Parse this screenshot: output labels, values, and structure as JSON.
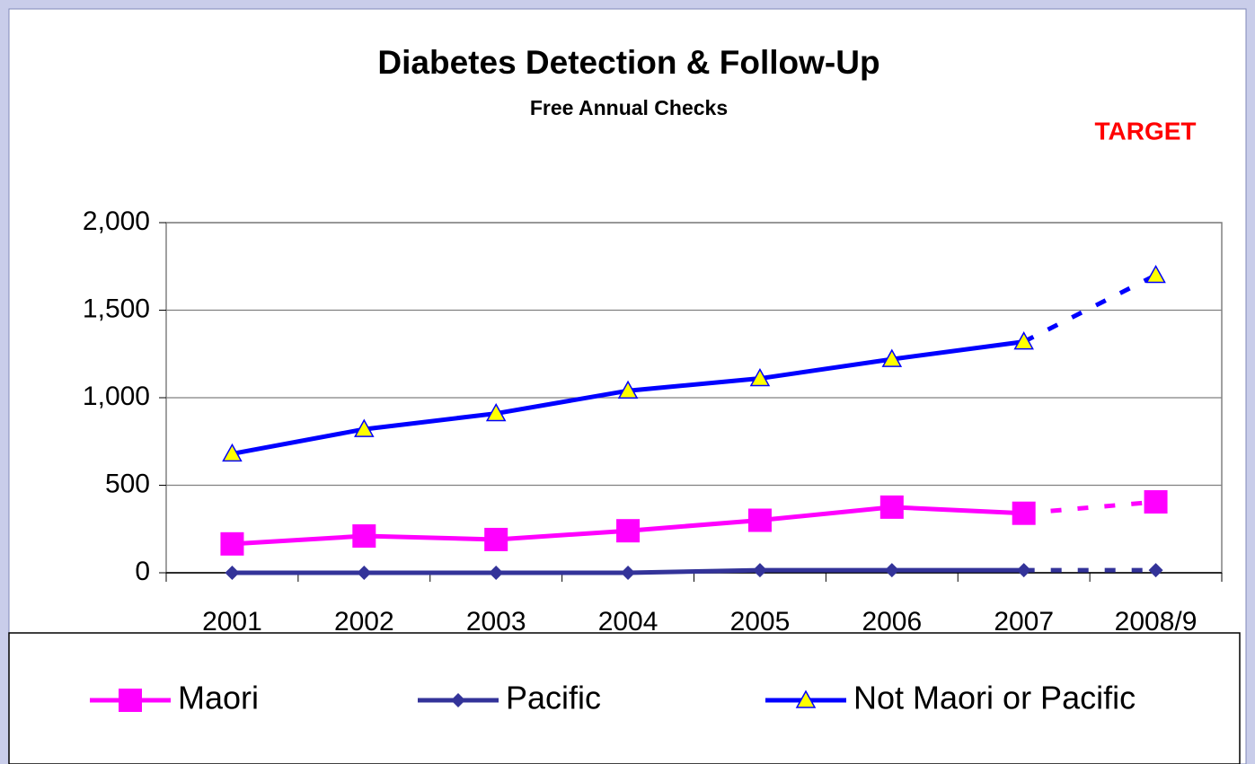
{
  "chart_data": {
    "type": "line",
    "title": "Diabetes Detection & Follow-Up",
    "subtitle": "Free Annual Checks",
    "annotation": "TARGET",
    "categories": [
      "2001",
      "2002",
      "2003",
      "2004",
      "2005",
      "2006",
      "2007",
      "2008/9"
    ],
    "series": [
      {
        "name": "Maori",
        "color": "#ff00ff",
        "marker": "square",
        "values": [
          165,
          210,
          190,
          240,
          300,
          375,
          340,
          405
        ]
      },
      {
        "name": "Pacific",
        "color": "#333399",
        "marker": "diamond",
        "values": [
          0,
          0,
          0,
          0,
          15,
          15,
          15,
          15
        ]
      },
      {
        "name": "Not Maori or Pacific",
        "color": "#0000ff",
        "marker": "triangle",
        "values": [
          680,
          820,
          910,
          1040,
          1110,
          1220,
          1320,
          1700
        ]
      }
    ],
    "ylim": [
      0,
      2000
    ],
    "yticks": [
      0,
      500,
      {
        "value": 1000,
        "label": "1,000"
      },
      {
        "value": 1500,
        "label": "1,500"
      },
      {
        "value": 2000,
        "label": "2,000"
      }
    ],
    "grid": true,
    "legend": "bottom"
  }
}
